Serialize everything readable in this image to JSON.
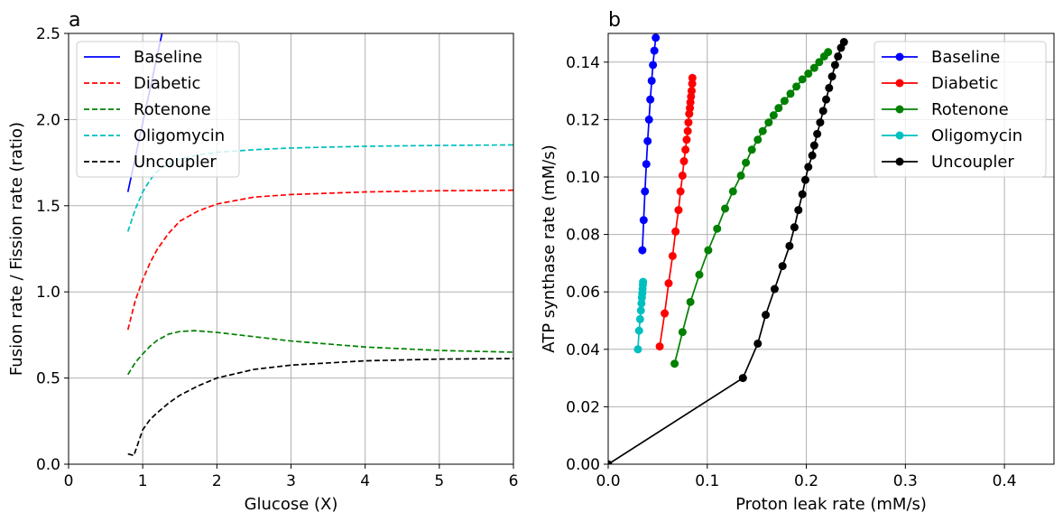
{
  "chart_data": [
    {
      "type": "line",
      "panel_label": "a",
      "xlabel": "Glucose (X)",
      "ylabel": "Fusion rate / Fission rate (ratio)",
      "xlim": [
        0,
        6
      ],
      "ylim": [
        0,
        2.5
      ],
      "xticks": [
        0,
        1,
        2,
        3,
        4,
        5,
        6
      ],
      "xtick_labels": [
        "0",
        "1",
        "2",
        "3",
        "4",
        "5",
        "6"
      ],
      "yticks": [
        0,
        0.5,
        1,
        1.5,
        2,
        2.5
      ],
      "ytick_labels": [
        "0.0",
        "0.5",
        "1.0",
        "1.5",
        "2.0",
        "2.5"
      ],
      "grid": true,
      "legend": "top-left",
      "series": [
        {
          "name": "Baseline",
          "color": "#0000ff",
          "dash": false,
          "x": [
            0.8,
            1.0,
            1.2,
            1.3
          ],
          "y": [
            1.58,
            1.98,
            2.38,
            2.58
          ]
        },
        {
          "name": "Diabetic",
          "color": "#ff0000",
          "dash": true,
          "x": [
            0.8,
            0.9,
            1.0,
            1.1,
            1.2,
            1.35,
            1.5,
            1.75,
            2,
            2.5,
            3,
            4,
            5,
            6
          ],
          "y": [
            0.78,
            0.95,
            1.07,
            1.17,
            1.25,
            1.34,
            1.41,
            1.47,
            1.51,
            1.55,
            1.565,
            1.58,
            1.587,
            1.59
          ]
        },
        {
          "name": "Rotenone",
          "color": "#008000",
          "dash": true,
          "x": [
            0.8,
            0.9,
            1.0,
            1.1,
            1.2,
            1.35,
            1.5,
            1.7,
            2,
            2.5,
            3,
            4,
            5,
            6
          ],
          "y": [
            0.52,
            0.59,
            0.64,
            0.685,
            0.72,
            0.755,
            0.77,
            0.775,
            0.765,
            0.74,
            0.715,
            0.68,
            0.66,
            0.65
          ]
        },
        {
          "name": "Oligomycin",
          "color": "#00bfbf",
          "dash": true,
          "x": [
            0.8,
            0.9,
            1.0,
            1.1,
            1.2,
            1.35,
            1.5,
            1.75,
            2,
            2.5,
            3,
            4,
            5,
            6
          ],
          "y": [
            1.35,
            1.48,
            1.58,
            1.65,
            1.7,
            1.745,
            1.77,
            1.795,
            1.81,
            1.825,
            1.835,
            1.845,
            1.85,
            1.853
          ]
        },
        {
          "name": "Uncoupler",
          "color": "#000000",
          "dash": true,
          "x": [
            0.8,
            0.88,
            1.0,
            1.1,
            1.2,
            1.35,
            1.5,
            1.75,
            2,
            2.5,
            3,
            4,
            5,
            6
          ],
          "y": [
            0.06,
            0.05,
            0.2,
            0.26,
            0.3,
            0.355,
            0.4,
            0.455,
            0.5,
            0.55,
            0.575,
            0.6,
            0.61,
            0.613
          ]
        }
      ]
    },
    {
      "type": "line",
      "panel_label": "b",
      "xlabel": "Proton leak rate (mM/s)",
      "ylabel": "ATP synthase rate (mM/s)",
      "xlim": [
        0,
        0.45
      ],
      "ylim": [
        0,
        0.15
      ],
      "xticks": [
        0,
        0.1,
        0.2,
        0.3,
        0.4
      ],
      "xtick_labels": [
        "0.0",
        "0.1",
        "0.2",
        "0.3",
        "0.4"
      ],
      "yticks": [
        0,
        0.02,
        0.04,
        0.06,
        0.08,
        0.1,
        0.12,
        0.14
      ],
      "ytick_labels": [
        "0.00",
        "0.02",
        "0.04",
        "0.06",
        "0.08",
        "0.10",
        "0.12",
        "0.14"
      ],
      "grid": true,
      "legend": "top-right",
      "markers": true,
      "series": [
        {
          "name": "Baseline",
          "color": "#0000ff",
          "x": [
            0.0345,
            0.0358,
            0.0371,
            0.0385,
            0.0398,
            0.0412,
            0.0425,
            0.0439,
            0.0452,
            0.0466,
            0.048
          ],
          "y": [
            0.0745,
            0.085,
            0.095,
            0.1045,
            0.1125,
            0.12,
            0.127,
            0.1335,
            0.139,
            0.144,
            0.1485
          ]
        },
        {
          "name": "Diabetic",
          "color": "#ff0000",
          "x": [
            0.052,
            0.057,
            0.061,
            0.065,
            0.068,
            0.071,
            0.073,
            0.075,
            0.0765,
            0.078,
            0.0792,
            0.0803,
            0.081,
            0.0818,
            0.0825,
            0.083,
            0.0836,
            0.0842,
            0.0848,
            0.085
          ],
          "y": [
            0.041,
            0.0525,
            0.063,
            0.0725,
            0.081,
            0.0885,
            0.095,
            0.1005,
            0.1055,
            0.1095,
            0.113,
            0.116,
            0.119,
            0.122,
            0.124,
            0.126,
            0.128,
            0.13,
            0.1325,
            0.1345
          ]
        },
        {
          "name": "Oligomycin",
          "color": "#00bfbf",
          "x": [
            0.03,
            0.0312,
            0.0322,
            0.033,
            0.0336,
            0.034,
            0.0344,
            0.0347,
            0.035,
            0.0352
          ],
          "y": [
            0.04,
            0.0465,
            0.0505,
            0.0535,
            0.056,
            0.058,
            0.0595,
            0.061,
            0.0625,
            0.0635
          ]
        },
        {
          "name": "Rotenone",
          "color": "#008000",
          "x": [
            0.067,
            0.075,
            0.083,
            0.092,
            0.101,
            0.11,
            0.118,
            0.126,
            0.134,
            0.139,
            0.145,
            0.151,
            0.156,
            0.162,
            0.167,
            0.172,
            0.178,
            0.184,
            0.19,
            0.196,
            0.202,
            0.208,
            0.213,
            0.218,
            0.222
          ],
          "y": [
            0.035,
            0.046,
            0.0565,
            0.066,
            0.0745,
            0.082,
            0.089,
            0.095,
            0.1005,
            0.105,
            0.1095,
            0.113,
            0.116,
            0.119,
            0.1215,
            0.124,
            0.1265,
            0.129,
            0.1315,
            0.134,
            0.136,
            0.138,
            0.14,
            0.142,
            0.1435
          ]
        },
        {
          "name": "Uncoupler",
          "color": "#000000",
          "x": [
            0.0,
            0.136,
            0.151,
            0.159,
            0.168,
            0.176,
            0.183,
            0.188,
            0.192,
            0.196,
            0.199,
            0.202,
            0.206,
            0.208,
            0.211,
            0.214,
            0.217,
            0.22,
            0.223,
            0.226,
            0.229,
            0.232,
            0.235,
            0.238
          ],
          "y": [
            0.0,
            0.03,
            0.042,
            0.052,
            0.061,
            0.069,
            0.076,
            0.0825,
            0.0885,
            0.094,
            0.099,
            0.1035,
            0.1075,
            0.111,
            0.115,
            0.119,
            0.123,
            0.127,
            0.131,
            0.135,
            0.139,
            0.142,
            0.145,
            0.147
          ]
        }
      ]
    }
  ]
}
